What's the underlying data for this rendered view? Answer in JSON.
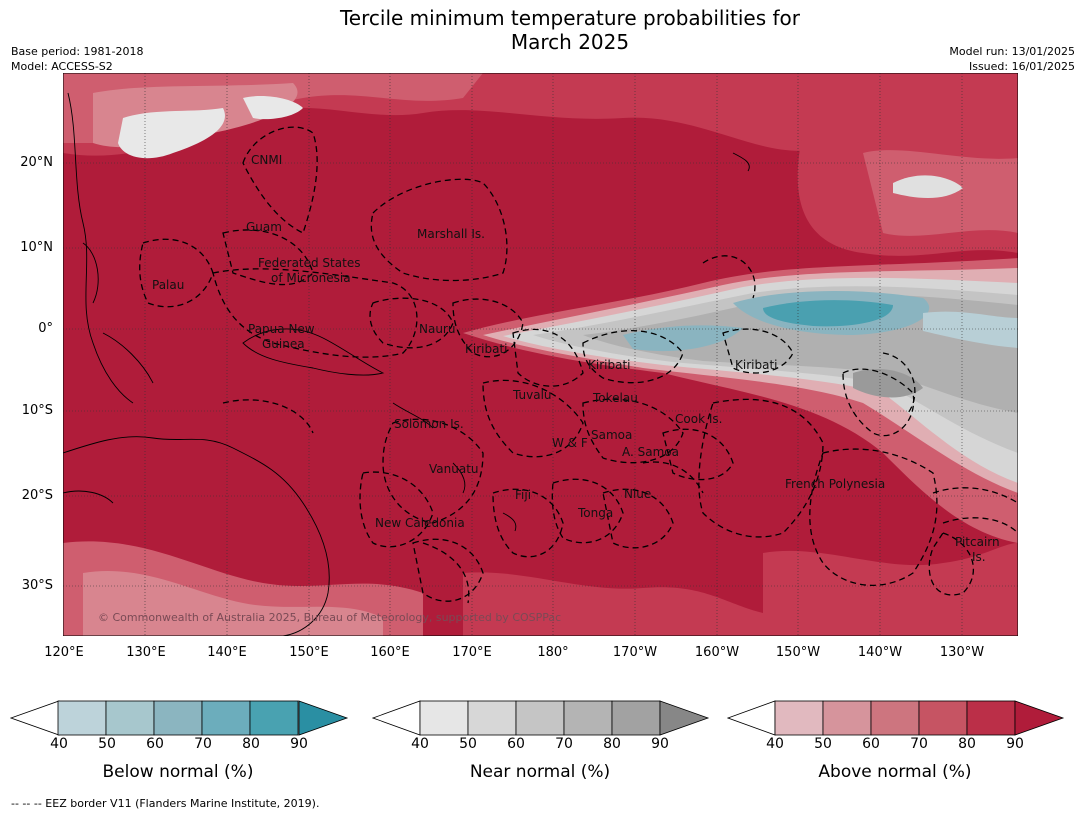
{
  "title_line1": "Tercile minimum temperature probabilities for",
  "title_line2": "March 2025",
  "meta": {
    "base_period": "Base period: 1981-2018",
    "model": "Model: ACCESS-S2",
    "model_run": "Model run: 13/01/2025",
    "issued": "Issued: 16/01/2025"
  },
  "map": {
    "lat_labels": [
      "20°N",
      "10°N",
      "0°",
      "10°S",
      "20°S",
      "30°S"
    ],
    "lon_labels": [
      "120°E",
      "130°E",
      "140°E",
      "150°E",
      "160°E",
      "170°E",
      "180°",
      "170°W",
      "160°W",
      "150°W",
      "140°W",
      "130°W"
    ],
    "copyright": "© Commonwealth of Australia 2025, Bureau of Meteorology, supported by COSPPac",
    "regions": [
      "CNMI",
      "Guam",
      "Marshall Is.",
      "Federated States",
      "of Micronesia",
      "Palau",
      "Papua New",
      "Guinea",
      "Nauru",
      "Kiribati",
      "Kiribati",
      "Kiribati",
      "Tuvalu",
      "Tokelau",
      "Solomon Is.",
      "Cook Is.",
      "Samoa",
      "W & F",
      "A. Samoa",
      "Vanuatu",
      "Fiji",
      "Niue",
      "French Polynesia",
      "New Caledonia",
      "Tonga",
      "Pitcairn",
      "Is."
    ],
    "colors": {
      "ocean_dominant": "#b01c3a",
      "above_80": "#c43a52",
      "above_70": "#cf5e6f",
      "above_60": "#d8858f",
      "above_50": "#e0aeb3",
      "near_50": "#d6d6d6",
      "near_60": "#c4c4c4",
      "near_70": "#b0b0b0",
      "near_90": "#8f8f8f",
      "below_60": "#8ab4c0",
      "below_80": "#4aa0b0"
    }
  },
  "colorbars": [
    {
      "title": "Below normal (%)",
      "ticks": [
        "40",
        "50",
        "60",
        "70",
        "80",
        "90"
      ],
      "colors": [
        "#bdd3da",
        "#a7c7cd",
        "#8bb5c0",
        "#6cadbc",
        "#49a2b1",
        "#2a8fa3"
      ]
    },
    {
      "title": "Near normal (%)",
      "ticks": [
        "40",
        "50",
        "60",
        "70",
        "80",
        "90"
      ],
      "colors": [
        "#e6e6e6",
        "#d7d7d7",
        "#c5c5c5",
        "#b4b4b4",
        "#a2a2a2",
        "#878787"
      ]
    },
    {
      "title": "Above normal (%)",
      "ticks": [
        "40",
        "50",
        "60",
        "70",
        "80",
        "90"
      ],
      "colors": [
        "#e1b9bf",
        "#d6949c",
        "#cd757f",
        "#c65463",
        "#bb2f48",
        "#b01c3a"
      ]
    }
  ],
  "footnote": "--  --  -- EEZ border V11 (Flanders Marine Institute, 2019)."
}
